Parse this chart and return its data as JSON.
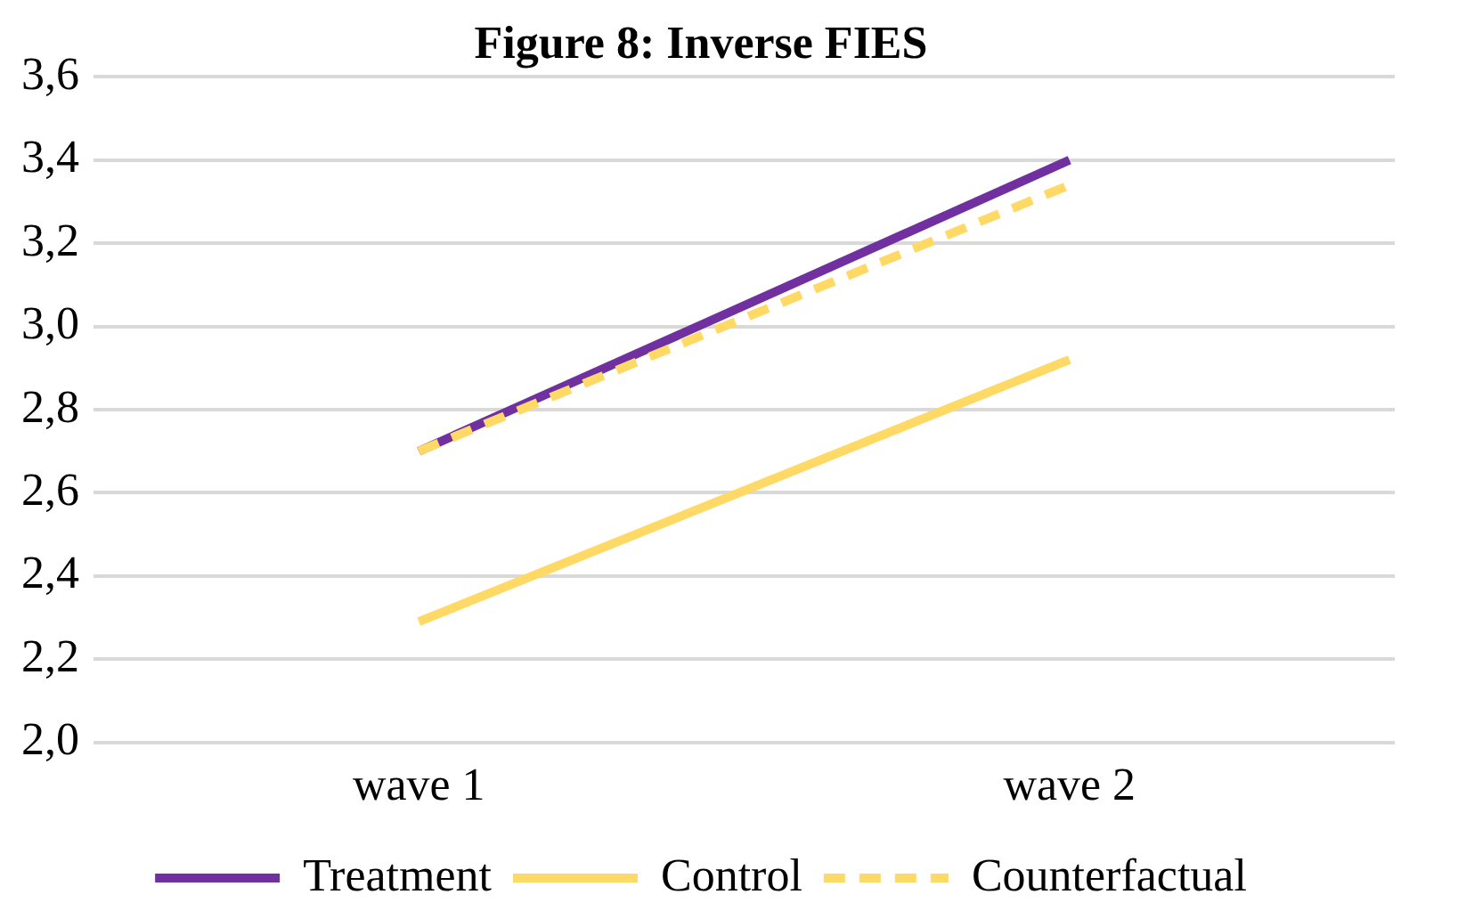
{
  "chart_data": {
    "type": "line",
    "title": "Figure 8: Inverse FIES",
    "categories": [
      "wave 1",
      "wave 2"
    ],
    "series": [
      {
        "name": "Treatment",
        "color": "#7030a0",
        "values": [
          2.7,
          3.4
        ]
      },
      {
        "name": "Control",
        "color": "#ffd966",
        "values": [
          2.29,
          2.92
        ]
      },
      {
        "name": "Counterfactual",
        "color": "#ffd966",
        "values": [
          2.7,
          3.34
        ],
        "line_style": "dashed"
      }
    ],
    "ylim": [
      2.0,
      3.6
    ],
    "yticks": [
      {
        "value": 2.0,
        "label": "2,0"
      },
      {
        "value": 2.2,
        "label": "2,2"
      },
      {
        "value": 2.4,
        "label": "2,4"
      },
      {
        "value": 2.6,
        "label": "2,6"
      },
      {
        "value": 2.8,
        "label": "2,8"
      },
      {
        "value": 3.0,
        "label": "3,0"
      },
      {
        "value": 3.2,
        "label": "3,2"
      },
      {
        "value": 3.4,
        "label": "3,4"
      },
      {
        "value": 3.6,
        "label": "3,6"
      }
    ],
    "grid": "y",
    "legend": "bottom",
    "marker": "none",
    "line_style": "solid"
  }
}
